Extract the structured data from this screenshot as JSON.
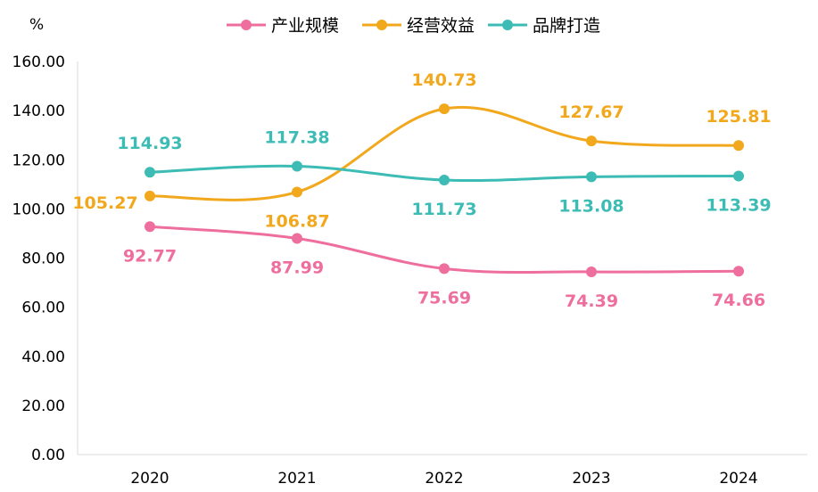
{
  "chart_data": {
    "type": "line",
    "unit": "%",
    "categories": [
      "2020",
      "2021",
      "2022",
      "2023",
      "2024"
    ],
    "ylim": [
      0,
      160
    ],
    "yticks": [
      "0.00",
      "20.00",
      "40.00",
      "60.00",
      "80.00",
      "100.00",
      "120.00",
      "140.00",
      "160.00"
    ],
    "grid": false,
    "legend": "top",
    "smooth": true,
    "series": [
      {
        "name": "产业规模",
        "color": "#EE6E9E",
        "values": [
          92.77,
          87.99,
          75.69,
          74.39,
          74.66
        ],
        "labels": [
          "92.77",
          "87.99",
          "75.69",
          "74.39",
          "74.66"
        ]
      },
      {
        "name": "经营效益",
        "color": "#F2A81D",
        "values": [
          105.27,
          106.87,
          140.73,
          127.67,
          125.81
        ],
        "labels": [
          "105.27",
          "106.87",
          "140.73",
          "127.67",
          "125.81"
        ]
      },
      {
        "name": "品牌打造",
        "color": "#3CBCB4",
        "values": [
          114.93,
          117.38,
          111.73,
          113.08,
          113.39
        ],
        "labels": [
          "114.93",
          "117.38",
          "111.73",
          "113.08",
          "113.39"
        ]
      }
    ]
  }
}
